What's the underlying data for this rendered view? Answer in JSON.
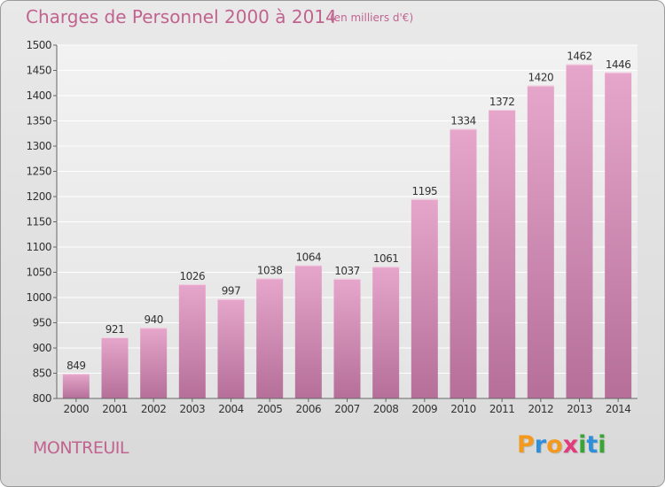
{
  "chart_data": {
    "type": "bar",
    "title": "Charges de Personnel 2000 à 2014",
    "subtitle": "(en milliers d'€)",
    "categories": [
      "2000",
      "2001",
      "2002",
      "2003",
      "2004",
      "2005",
      "2006",
      "2007",
      "2008",
      "2009",
      "2010",
      "2011",
      "2012",
      "2013",
      "2014"
    ],
    "values": [
      849,
      921,
      940,
      1026,
      997,
      1038,
      1064,
      1037,
      1061,
      1195,
      1334,
      1372,
      1420,
      1462,
      1446
    ],
    "ylim": [
      800,
      1500
    ],
    "yticks": [
      800,
      850,
      900,
      950,
      1000,
      1050,
      1100,
      1150,
      1200,
      1250,
      1300,
      1350,
      1400,
      1450,
      1500
    ],
    "grid": true,
    "bar_color": "#d68bb5"
  },
  "footer": {
    "city": "MONTREUIL",
    "logo_letters": [
      "P",
      "r",
      "o",
      "x",
      "i",
      "t",
      "i"
    ],
    "logo_colors": [
      "#f39a1e",
      "#2f8fd8",
      "#f39a1e",
      "#e23b7b",
      "#37a635",
      "#2f8fd8",
      "#37a635"
    ]
  }
}
